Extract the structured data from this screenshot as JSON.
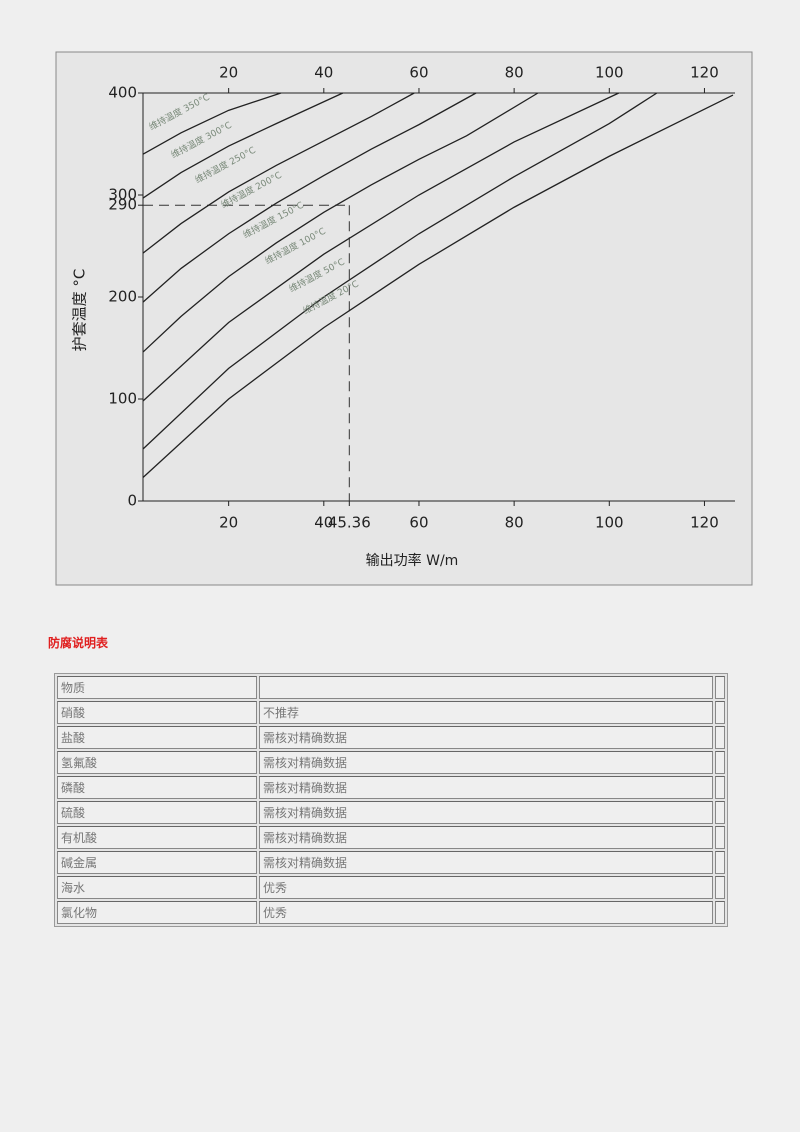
{
  "chart_data": {
    "type": "line",
    "y_label": "护套温度 °C",
    "x_label": "输出功率 W/m",
    "xlim": [
      2,
      126
    ],
    "ylim": [
      0,
      400
    ],
    "xticks": [
      20,
      40,
      45.36,
      60,
      80,
      100,
      120
    ],
    "xticks_top": [
      20,
      40,
      60,
      80,
      100,
      120
    ],
    "yticks": [
      0,
      100,
      200,
      290,
      300,
      400
    ],
    "color": "#222222",
    "series": [
      {
        "name": "维持温度 350°C",
        "x": [
          2,
          10,
          20,
          31
        ],
        "values": [
          340,
          361,
          383,
          400
        ]
      },
      {
        "name": "维持温度 300°C",
        "x": [
          2,
          10,
          20,
          30,
          44
        ],
        "values": [
          297,
          322,
          348,
          370,
          400
        ]
      },
      {
        "name": "维持温度 250°C",
        "x": [
          2,
          10,
          20,
          30,
          40,
          50,
          59
        ],
        "values": [
          243,
          272,
          303,
          329,
          353,
          377,
          400
        ]
      },
      {
        "name": "维持温度 200°C",
        "x": [
          2,
          10,
          20,
          30,
          40,
          50,
          60,
          72
        ],
        "values": [
          195,
          228,
          262,
          292,
          319,
          345,
          369,
          400
        ]
      },
      {
        "name": "维持温度 150°C",
        "x": [
          2,
          10,
          20,
          30,
          40,
          50,
          60,
          70,
          85
        ],
        "values": [
          146,
          181,
          220,
          253,
          283,
          310,
          335,
          358,
          400
        ]
      },
      {
        "name": "维持温度 100°C",
        "x": [
          2,
          20,
          40,
          60,
          80,
          102
        ],
        "values": [
          98,
          175,
          242,
          300,
          352,
          400
        ]
      },
      {
        "name": "维持温度 50°C",
        "x": [
          2,
          20,
          40,
          60,
          80,
          100,
          110
        ],
        "values": [
          51,
          130,
          200,
          262,
          318,
          370,
          400
        ]
      },
      {
        "name": "维持温度 20°C",
        "x": [
          2,
          20,
          40,
          60,
          80,
          100,
          126
        ],
        "values": [
          23,
          100,
          170,
          232,
          288,
          338,
          398
        ]
      }
    ],
    "reference": {
      "x": 45.36,
      "y": 290
    }
  },
  "table": {
    "title": "防腐说明表",
    "header": [
      "物质"
    ],
    "rows": [
      [
        "硝酸",
        "不推荐"
      ],
      [
        "盐酸",
        "需核对精确数据"
      ],
      [
        "氢氟酸",
        "需核对精确数据"
      ],
      [
        "磷酸",
        "需核对精确数据"
      ],
      [
        "硫酸",
        "需核对精确数据"
      ],
      [
        "有机酸",
        "需核对精确数据"
      ],
      [
        "碱金属",
        "需核对精确数据"
      ],
      [
        "海水",
        "优秀"
      ],
      [
        "氯化物",
        "优秀"
      ]
    ]
  }
}
